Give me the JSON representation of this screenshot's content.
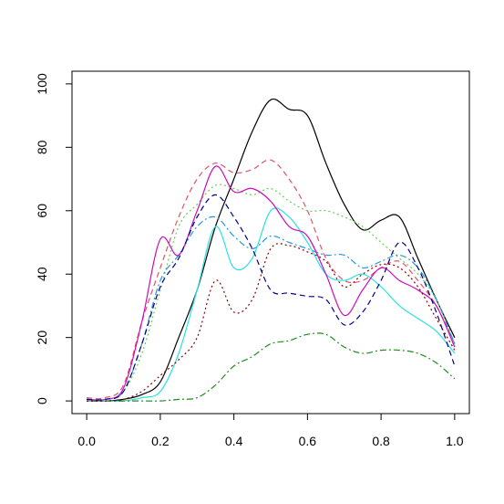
{
  "chart_data": {
    "type": "line",
    "title": "",
    "xlabel": "",
    "ylabel": "",
    "xlim": [
      -0.04,
      1.04
    ],
    "ylim": [
      -4,
      104
    ],
    "grid": false,
    "legend": "none",
    "x_ticks": [
      "0.0",
      "0.2",
      "0.4",
      "0.6",
      "0.8",
      "1.0"
    ],
    "y_ticks": [
      "0",
      "20",
      "40",
      "60",
      "80",
      "100"
    ],
    "x": [
      0.0,
      0.05,
      0.1,
      0.15,
      0.2,
      0.25,
      0.3,
      0.35,
      0.4,
      0.45,
      0.5,
      0.55,
      0.6,
      0.65,
      0.7,
      0.75,
      0.8,
      0.85,
      0.9,
      0.95,
      1.0
    ],
    "series": [
      {
        "color": "#000000",
        "dash": "solid",
        "values": [
          0,
          0,
          0.5,
          2,
          6,
          20,
          35,
          55,
          70,
          85,
          95,
          92,
          90,
          75,
          62,
          54,
          57,
          58,
          45,
          32,
          20
        ]
      },
      {
        "color": "#df536b",
        "dash": "dashed",
        "values": [
          1,
          1,
          5,
          25,
          42,
          58,
          70,
          75,
          72,
          73,
          76,
          70,
          60,
          45,
          38,
          38,
          42,
          44,
          38,
          30,
          18
        ]
      },
      {
        "color": "#61d04f",
        "dash": "dotted",
        "values": [
          0.5,
          0.5,
          3,
          15,
          35,
          55,
          62,
          68,
          67,
          65,
          67,
          63,
          60,
          60,
          58,
          55,
          50,
          45,
          40,
          32,
          18
        ]
      },
      {
        "color": "#2297e6",
        "dash": "dotdash",
        "values": [
          0.5,
          0.5,
          3,
          18,
          38,
          46,
          55,
          58,
          52,
          48,
          52,
          50,
          48,
          46,
          46,
          42,
          44,
          46,
          42,
          32,
          18
        ]
      },
      {
        "color": "#28e2e5",
        "dash": "solid",
        "values": [
          0,
          0,
          0,
          1,
          3,
          15,
          35,
          55,
          42,
          45,
          60,
          58,
          50,
          40,
          38,
          40,
          36,
          30,
          26,
          22,
          15
        ]
      },
      {
        "color": "#cd0bbc",
        "dash": "solid",
        "values": [
          0.5,
          0.5,
          4,
          25,
          51,
          46,
          60,
          74,
          66,
          67,
          63,
          55,
          52,
          40,
          27,
          35,
          42,
          38,
          35,
          30,
          17
        ]
      },
      {
        "color": "#228b22",
        "dash": "dotdash",
        "values": [
          0,
          0,
          0,
          0,
          0,
          0.5,
          1,
          5,
          11,
          14,
          18,
          19,
          21,
          21,
          17,
          15,
          16,
          16,
          15,
          12,
          7
        ]
      },
      {
        "color": "#8b0000",
        "dash": "dotted",
        "values": [
          0,
          0,
          0.5,
          3,
          8,
          13,
          20,
          38,
          28,
          32,
          48,
          49,
          47,
          44,
          36,
          40,
          43,
          42,
          36,
          26,
          16
        ]
      },
      {
        "color": "#00008b",
        "dash": "dashed",
        "values": [
          0.5,
          0.5,
          3,
          18,
          36,
          45,
          58,
          65,
          58,
          48,
          35,
          34,
          33,
          32,
          24,
          28,
          38,
          50,
          42,
          28,
          11
        ]
      }
    ]
  }
}
